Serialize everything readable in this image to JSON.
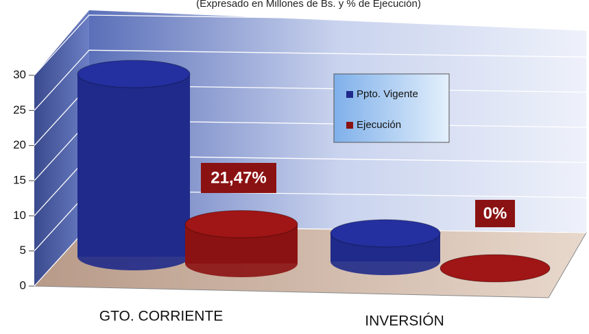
{
  "chart_data": {
    "type": "bar3d",
    "subtitle": "(Expresado en Millones de Bs. y % de Ejecución)",
    "categories": [
      "GTO. CORRIENTE",
      "INVERSIÓN"
    ],
    "series": [
      {
        "name": "Ppto. Vigente",
        "color": "#1f2a8a",
        "values": [
          26,
          4
        ]
      },
      {
        "name": "Ejecución",
        "color": "#8b1212",
        "values": [
          5.6,
          0
        ]
      }
    ],
    "annotations": [
      "21,47%",
      "0%"
    ],
    "ylim": [
      0,
      30
    ],
    "yticks": [
      0,
      5,
      10,
      15,
      20,
      25,
      30
    ],
    "grid": true,
    "legend": "inside-upper-right"
  }
}
